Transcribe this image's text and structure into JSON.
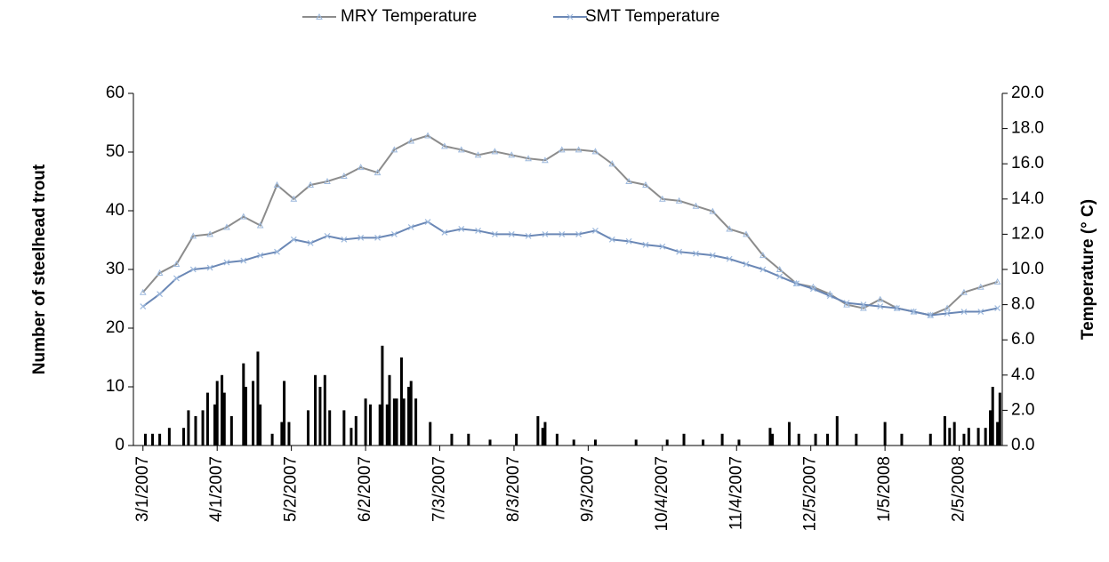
{
  "chart_data": {
    "type": "bar",
    "y_label": "Number of steelhead  trout",
    "y2_label": "Temperature (° C)",
    "xlim": [
      "2/25/2007",
      "2/23/2008"
    ],
    "xticks": [
      "3/1/2007",
      "4/1/2007",
      "5/2/2007",
      "6/2/2007",
      "7/3/2007",
      "8/3/2007",
      "9/3/2007",
      "10/4/2007",
      "11/4/2007",
      "12/5/2007",
      "1/5/2008",
      "2/5/2008"
    ],
    "ylim": [
      0,
      60
    ],
    "yticks": [
      0,
      10,
      20,
      30,
      40,
      50,
      60
    ],
    "y2lim": [
      0,
      20
    ],
    "y2ticks": [
      {
        "value": 0,
        "label": "0.0"
      },
      {
        "value": 2,
        "label": "2.0"
      },
      {
        "value": 4,
        "label": "4.0"
      },
      {
        "value": 6,
        "label": "6.0"
      },
      {
        "value": 8,
        "label": "8.0"
      },
      {
        "value": 10,
        "label": "10.0"
      },
      {
        "value": 12,
        "label": "12.0"
      },
      {
        "value": 14,
        "label": "14.0"
      },
      {
        "value": 16,
        "label": "16.0"
      },
      {
        "value": 18,
        "label": "18.0"
      },
      {
        "value": 20,
        "label": "20.0"
      }
    ],
    "series": [
      {
        "type": "bar",
        "color": "#000000",
        "x": [
          "3/2/2007",
          "3/5/2007",
          "3/8/2007",
          "3/12/2007",
          "3/18/2007",
          "3/20/2007",
          "3/23/2007",
          "3/26/2007",
          "3/28/2007",
          "3/31/2007",
          "4/1/2007",
          "4/3/2007",
          "4/4/2007",
          "4/7/2007",
          "4/12/2007",
          "4/13/2007",
          "4/16/2007",
          "4/18/2007",
          "4/19/2007",
          "4/24/2007",
          "4/28/2007",
          "4/29/2007",
          "5/1/2007",
          "5/9/2007",
          "5/12/2007",
          "5/14/2007",
          "5/16/2007",
          "5/18/2007",
          "5/24/2007",
          "5/27/2007",
          "5/29/2007",
          "6/2/2007",
          "6/4/2007",
          "6/8/2007",
          "6/9/2007",
          "6/11/2007",
          "6/12/2007",
          "6/14/2007",
          "6/15/2007",
          "6/17/2007",
          "6/18/2007",
          "6/20/2007",
          "6/21/2007",
          "6/23/2007",
          "6/29/2007",
          "7/8/2007",
          "7/15/2007",
          "7/24/2007",
          "8/4/2007",
          "8/13/2007",
          "8/15/2007",
          "8/16/2007",
          "8/21/2007",
          "8/28/2007",
          "9/6/2007",
          "9/23/2007",
          "10/6/2007",
          "10/13/2007",
          "10/21/2007",
          "10/29/2007",
          "11/5/2007",
          "11/18/2007",
          "11/19/2007",
          "11/26/2007",
          "11/30/2007",
          "12/7/2007",
          "12/12/2007",
          "12/16/2007",
          "12/24/2007",
          "1/5/2008",
          "1/12/2008",
          "1/24/2008",
          "1/30/2008",
          "2/1/2008",
          "2/3/2008",
          "2/7/2008",
          "2/9/2008",
          "2/13/2008",
          "2/16/2008",
          "2/18/2008",
          "2/19/2008",
          "2/21/2008",
          "2/22/2008"
        ],
        "values": [
          2,
          2,
          2,
          3,
          3,
          6,
          5,
          6,
          9,
          7,
          11,
          12,
          9,
          5,
          14,
          10,
          11,
          16,
          7,
          2,
          4,
          11,
          4,
          6,
          12,
          10,
          12,
          6,
          6,
          3,
          5,
          8,
          7,
          7,
          17,
          7,
          12,
          8,
          8,
          15,
          8,
          10,
          11,
          8,
          4,
          2,
          2,
          1,
          2,
          5,
          3,
          4,
          2,
          1,
          1,
          1,
          1,
          2,
          1,
          2,
          1,
          3,
          2,
          4,
          2,
          2,
          2,
          5,
          2,
          4,
          2,
          2,
          5,
          3,
          4,
          2,
          3,
          3,
          3,
          6,
          10,
          4,
          9
        ]
      },
      {
        "type": "line",
        "name": "MRY Temperature",
        "axis": "y2",
        "color": "#8c8c8c",
        "marker_color": "#9db9dd",
        "marker": "triangle",
        "x": [
          "3/1/2007",
          "3/8/2007",
          "3/15/2007",
          "3/22/2007",
          "3/29/2007",
          "4/5/2007",
          "4/12/2007",
          "4/19/2007",
          "4/26/2007",
          "5/3/2007",
          "5/10/2007",
          "5/17/2007",
          "5/24/2007",
          "5/31/2007",
          "6/7/2007",
          "6/14/2007",
          "6/21/2007",
          "6/28/2007",
          "7/5/2007",
          "7/12/2007",
          "7/19/2007",
          "7/26/2007",
          "8/2/2007",
          "8/9/2007",
          "8/16/2007",
          "8/23/2007",
          "8/30/2007",
          "9/6/2007",
          "9/13/2007",
          "9/20/2007",
          "9/27/2007",
          "10/4/2007",
          "10/11/2007",
          "10/18/2007",
          "10/25/2007",
          "11/1/2007",
          "11/8/2007",
          "11/15/2007",
          "11/22/2007",
          "11/29/2007",
          "12/6/2007",
          "12/13/2007",
          "12/20/2007",
          "12/27/2007",
          "1/3/2008",
          "1/10/2008",
          "1/17/2008",
          "1/24/2008",
          "1/31/2008",
          "2/7/2008",
          "2/14/2008",
          "2/21/2008"
        ],
        "values": [
          8.7,
          9.8,
          10.3,
          11.9,
          12.0,
          12.4,
          13.0,
          12.5,
          14.8,
          14.0,
          14.8,
          15.0,
          15.3,
          15.8,
          15.5,
          16.8,
          17.3,
          17.6,
          17.0,
          16.8,
          16.5,
          16.7,
          16.5,
          16.3,
          16.2,
          16.8,
          16.8,
          16.7,
          16.0,
          15.0,
          14.8,
          14.0,
          13.9,
          13.6,
          13.3,
          12.3,
          12.0,
          10.8,
          10.0,
          9.2,
          9.0,
          8.6,
          8.0,
          7.8,
          8.3,
          7.8,
          7.6,
          7.4,
          7.8,
          8.7,
          9.0,
          9.3
        ]
      },
      {
        "type": "line",
        "name": "SMT Temperature",
        "axis": "y2",
        "color": "#6a87b5",
        "marker_color": "#9db9dd",
        "marker": "x",
        "x": [
          "3/1/2007",
          "3/8/2007",
          "3/15/2007",
          "3/22/2007",
          "3/29/2007",
          "4/5/2007",
          "4/12/2007",
          "4/19/2007",
          "4/26/2007",
          "5/3/2007",
          "5/10/2007",
          "5/17/2007",
          "5/24/2007",
          "5/31/2007",
          "6/7/2007",
          "6/14/2007",
          "6/21/2007",
          "6/28/2007",
          "7/5/2007",
          "7/12/2007",
          "7/19/2007",
          "7/26/2007",
          "8/2/2007",
          "8/9/2007",
          "8/16/2007",
          "8/23/2007",
          "8/30/2007",
          "9/6/2007",
          "9/13/2007",
          "9/20/2007",
          "9/27/2007",
          "10/4/2007",
          "10/11/2007",
          "10/18/2007",
          "10/25/2007",
          "11/1/2007",
          "11/8/2007",
          "11/15/2007",
          "11/22/2007",
          "11/29/2007",
          "12/6/2007",
          "12/13/2007",
          "12/20/2007",
          "12/27/2007",
          "1/3/2008",
          "1/10/2008",
          "1/17/2008",
          "1/24/2008",
          "1/31/2008",
          "2/7/2008",
          "2/14/2008",
          "2/21/2008"
        ],
        "values": [
          7.9,
          8.6,
          9.5,
          10.0,
          10.1,
          10.4,
          10.5,
          10.8,
          11.0,
          11.7,
          11.5,
          11.9,
          11.7,
          11.8,
          11.8,
          12.0,
          12.4,
          12.7,
          12.1,
          12.3,
          12.2,
          12.0,
          12.0,
          11.9,
          12.0,
          12.0,
          12.0,
          12.2,
          11.7,
          11.6,
          11.4,
          11.3,
          11.0,
          10.9,
          10.8,
          10.6,
          10.3,
          10.0,
          9.6,
          9.2,
          8.9,
          8.5,
          8.1,
          8.0,
          7.9,
          7.8,
          7.6,
          7.4,
          7.5,
          7.6,
          7.6,
          7.8
        ]
      }
    ]
  }
}
